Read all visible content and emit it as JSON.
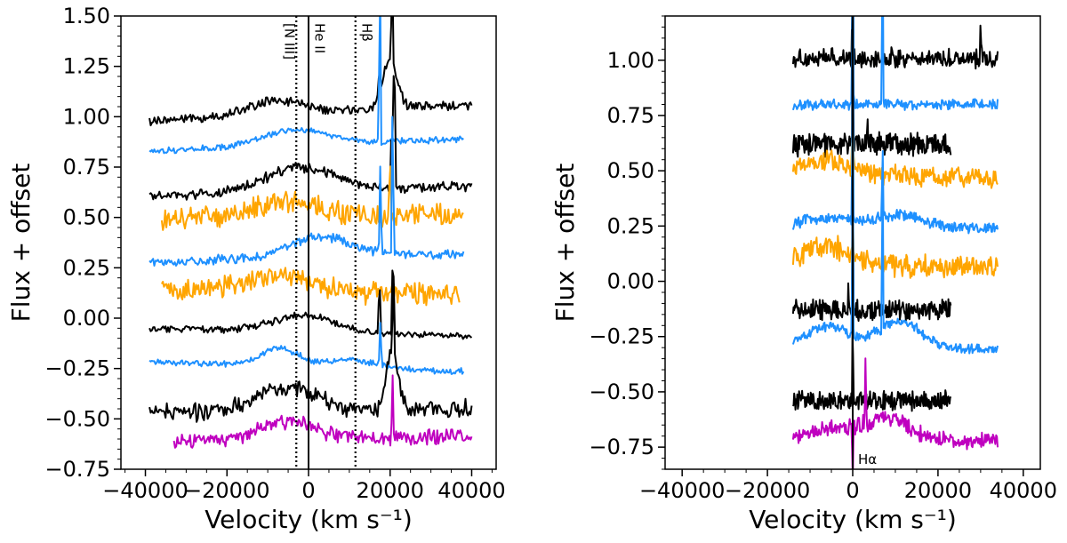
{
  "chart_data": [
    {
      "type": "line",
      "panel": "left",
      "xlabel": "Velocity (km s⁻¹)",
      "ylabel": "Flux + offset",
      "xlim": [
        -46000,
        46000
      ],
      "ylim": [
        -0.75,
        1.5
      ],
      "xticks": [
        -40000,
        -20000,
        0,
        20000,
        40000
      ],
      "xtick_labels": [
        "−40000",
        "−20000",
        "0",
        "20000",
        "40000"
      ],
      "yticks": [
        -0.75,
        -0.5,
        -0.25,
        0.0,
        0.25,
        0.5,
        0.75,
        1.0,
        1.25,
        1.5
      ],
      "ytick_labels": [
        "−0.75",
        "−0.50",
        "−0.25",
        "0.00",
        "0.25",
        "0.50",
        "0.75",
        "1.00",
        "1.25",
        "1.50"
      ],
      "vlines": [
        {
          "x": -3000,
          "style": "dotted",
          "label": "[N III]"
        },
        {
          "x": 0,
          "style": "solid",
          "label": "He II"
        },
        {
          "x": 11500,
          "style": "dotted",
          "label": "Hβ"
        }
      ],
      "series": [
        {
          "name": "spectrum-1",
          "color": "#000000",
          "x_range": [
            -39000,
            40000
          ],
          "base": 1.02,
          "tilt": 0.08,
          "bumps": [
            [
              -8000,
              9000,
              0.07
            ],
            [
              20000,
              2500,
              0.25
            ]
          ],
          "noise": 0.018,
          "spikes": [
            [
              17400,
              0.18
            ],
            [
              20500,
              0.5
            ]
          ]
        },
        {
          "name": "spectrum-2",
          "color": "#1e90ff",
          "x_range": [
            -39000,
            38000
          ],
          "base": 0.86,
          "tilt": 0.06,
          "bumps": [
            [
              -3000,
              11000,
              0.08
            ]
          ],
          "noise": 0.012,
          "spikes": [
            [
              17500,
              0.9
            ]
          ]
        },
        {
          "name": "spectrum-3",
          "color": "#000000",
          "x_range": [
            -39000,
            40000
          ],
          "base": 0.63,
          "tilt": 0.05,
          "bumps": [
            [
              -2000,
              12000,
              0.12
            ]
          ],
          "noise": 0.02,
          "spikes": [
            [
              20400,
              0.4
            ],
            [
              21000,
              0.9
            ]
          ]
        },
        {
          "name": "spectrum-4",
          "color": "#ffa500",
          "x_range": [
            -36000,
            38000
          ],
          "base": 0.5,
          "tilt": 0.02,
          "bumps": [
            [
              -6000,
              12000,
              0.08
            ]
          ],
          "noise": 0.045,
          "spikes": [
            [
              20000,
              0.35
            ]
          ]
        },
        {
          "name": "spectrum-5",
          "color": "#1e90ff",
          "x_range": [
            -39000,
            38000
          ],
          "base": 0.3,
          "tilt": 0.04,
          "bumps": [
            [
              3000,
              11000,
              0.1
            ]
          ],
          "noise": 0.018,
          "spikes": [
            [
              17600,
              0.45
            ],
            [
              20600,
              0.85
            ]
          ]
        },
        {
          "name": "spectrum-6",
          "color": "#ffa500",
          "x_range": [
            -36000,
            37000
          ],
          "base": 0.13,
          "tilt": -0.02,
          "bumps": [
            [
              -8000,
              12000,
              0.08
            ]
          ],
          "noise": 0.045,
          "spikes": []
        },
        {
          "name": "spectrum-7",
          "color": "#000000",
          "x_range": [
            -39000,
            40000
          ],
          "base": -0.07,
          "tilt": -0.04,
          "bumps": [
            [
              -1000,
              11000,
              0.08
            ]
          ],
          "noise": 0.014,
          "spikes": [
            [
              17400,
              0.3
            ],
            [
              20700,
              0.5
            ]
          ]
        },
        {
          "name": "spectrum-8",
          "color": "#1e90ff",
          "x_range": [
            -39000,
            38000
          ],
          "base": -0.24,
          "tilt": -0.05,
          "bumps": [
            [
              -7000,
              6000,
              0.09
            ],
            [
              10000,
              9000,
              0.04
            ]
          ],
          "noise": 0.012,
          "spikes": [
            [
              17600,
              0.25
            ]
          ]
        },
        {
          "name": "spectrum-9",
          "color": "#000000",
          "x_range": [
            -39000,
            40000
          ],
          "base": -0.46,
          "tilt": 0.02,
          "bumps": [
            [
              -5000,
              10000,
              0.12
            ],
            [
              20500,
              2000,
              0.3
            ]
          ],
          "noise": 0.035,
          "spikes": [
            [
              20800,
              0.4
            ]
          ]
        },
        {
          "name": "spectrum-10",
          "color": "#bf00bf",
          "x_range": [
            -33000,
            40000
          ],
          "base": -0.6,
          "tilt": 0.03,
          "bumps": [
            [
              -5000,
              9000,
              0.09
            ]
          ],
          "noise": 0.03,
          "spikes": [
            [
              20600,
              0.35
            ]
          ]
        }
      ]
    },
    {
      "type": "line",
      "panel": "right",
      "xlabel": "Velocity (km s⁻¹)",
      "ylabel": "Flux + offset",
      "xlim": [
        -44000,
        44000
      ],
      "ylim": [
        -0.85,
        1.2
      ],
      "xticks": [
        -40000,
        -20000,
        0,
        20000,
        40000
      ],
      "xtick_labels": [
        "−40000",
        "−20000",
        "0",
        "20000",
        "40000"
      ],
      "yticks": [
        -0.75,
        -0.5,
        -0.25,
        0.0,
        0.25,
        0.5,
        0.75,
        1.0
      ],
      "ytick_labels": [
        "−0.75",
        "−0.50",
        "−0.25",
        "0.00",
        "0.25",
        "0.50",
        "0.75",
        "1.00"
      ],
      "vlines": [
        {
          "x": 0,
          "style": "solid",
          "label": "Hα"
        }
      ],
      "series": [
        {
          "name": "spectrum-1",
          "color": "#000000",
          "x_range": [
            -14000,
            34000
          ],
          "base": 1.01,
          "tilt": 0.0,
          "bumps": [],
          "noise": 0.035,
          "spikes": [
            [
              0,
              0.8
            ],
            [
              30000,
              0.2
            ]
          ]
        },
        {
          "name": "spectrum-2",
          "color": "#1e90ff",
          "x_range": [
            -14000,
            34000
          ],
          "base": 0.8,
          "tilt": 0.0,
          "bumps": [],
          "noise": 0.018,
          "spikes": [
            [
              0,
              0.9
            ],
            [
              7000,
              0.9
            ]
          ]
        },
        {
          "name": "spectrum-3",
          "color": "#000000",
          "x_range": [
            -14000,
            23000
          ],
          "base": 0.62,
          "tilt": 0.0,
          "bumps": [],
          "noise": 0.04,
          "spikes": [
            [
              0,
              0.7
            ],
            [
              3500,
              0.15
            ]
          ]
        },
        {
          "name": "spectrum-4",
          "color": "#ffa500",
          "x_range": [
            -14000,
            34000
          ],
          "base": 0.48,
          "tilt": -0.03,
          "bumps": [
            [
              -6000,
              8000,
              0.06
            ]
          ],
          "noise": 0.035,
          "spikes": [
            [
              0,
              0.3
            ]
          ]
        },
        {
          "name": "spectrum-5",
          "color": "#1e90ff",
          "x_range": [
            -14000,
            34000
          ],
          "base": 0.24,
          "tilt": 0.0,
          "bumps": [
            [
              -6000,
              8000,
              0.05
            ],
            [
              11000,
              8000,
              0.06
            ]
          ],
          "noise": 0.02,
          "spikes": [
            [
              0,
              0.9
            ],
            [
              7000,
              0.4
            ]
          ]
        },
        {
          "name": "spectrum-6",
          "color": "#ffa500",
          "x_range": [
            -14000,
            34000
          ],
          "base": 0.07,
          "tilt": -0.02,
          "bumps": [
            [
              -6000,
              8000,
              0.08
            ]
          ],
          "noise": 0.04,
          "spikes": [
            [
              0,
              0.25
            ]
          ]
        },
        {
          "name": "spectrum-7",
          "color": "#000000",
          "x_range": [
            -14000,
            23000
          ],
          "base": -0.13,
          "tilt": 0.0,
          "bumps": [],
          "noise": 0.035,
          "spikes": [
            [
              0,
              0.9
            ],
            [
              -1000,
              0.15
            ]
          ]
        },
        {
          "name": "spectrum-8",
          "color": "#1e90ff",
          "x_range": [
            -14000,
            34000
          ],
          "base": -0.3,
          "tilt": -0.02,
          "bumps": [
            [
              -6000,
              7000,
              0.09
            ],
            [
              11000,
              7000,
              0.12
            ]
          ],
          "noise": 0.018,
          "spikes": [
            [
              0,
              0.9
            ],
            [
              7000,
              0.9
            ]
          ]
        },
        {
          "name": "spectrum-9",
          "color": "#000000",
          "x_range": [
            -14000,
            23000
          ],
          "base": -0.54,
          "tilt": 0.0,
          "bumps": [],
          "noise": 0.035,
          "spikes": [
            [
              0,
              0.4
            ]
          ]
        },
        {
          "name": "spectrum-10",
          "color": "#bf00bf",
          "x_range": [
            -14000,
            34000
          ],
          "base": -0.72,
          "tilt": 0.0,
          "bumps": [
            [
              -5000,
              8000,
              0.05
            ],
            [
              8000,
              7000,
              0.1
            ]
          ],
          "noise": 0.03,
          "spikes": [
            [
              0,
              -0.3
            ],
            [
              3000,
              0.3
            ]
          ]
        }
      ]
    }
  ]
}
